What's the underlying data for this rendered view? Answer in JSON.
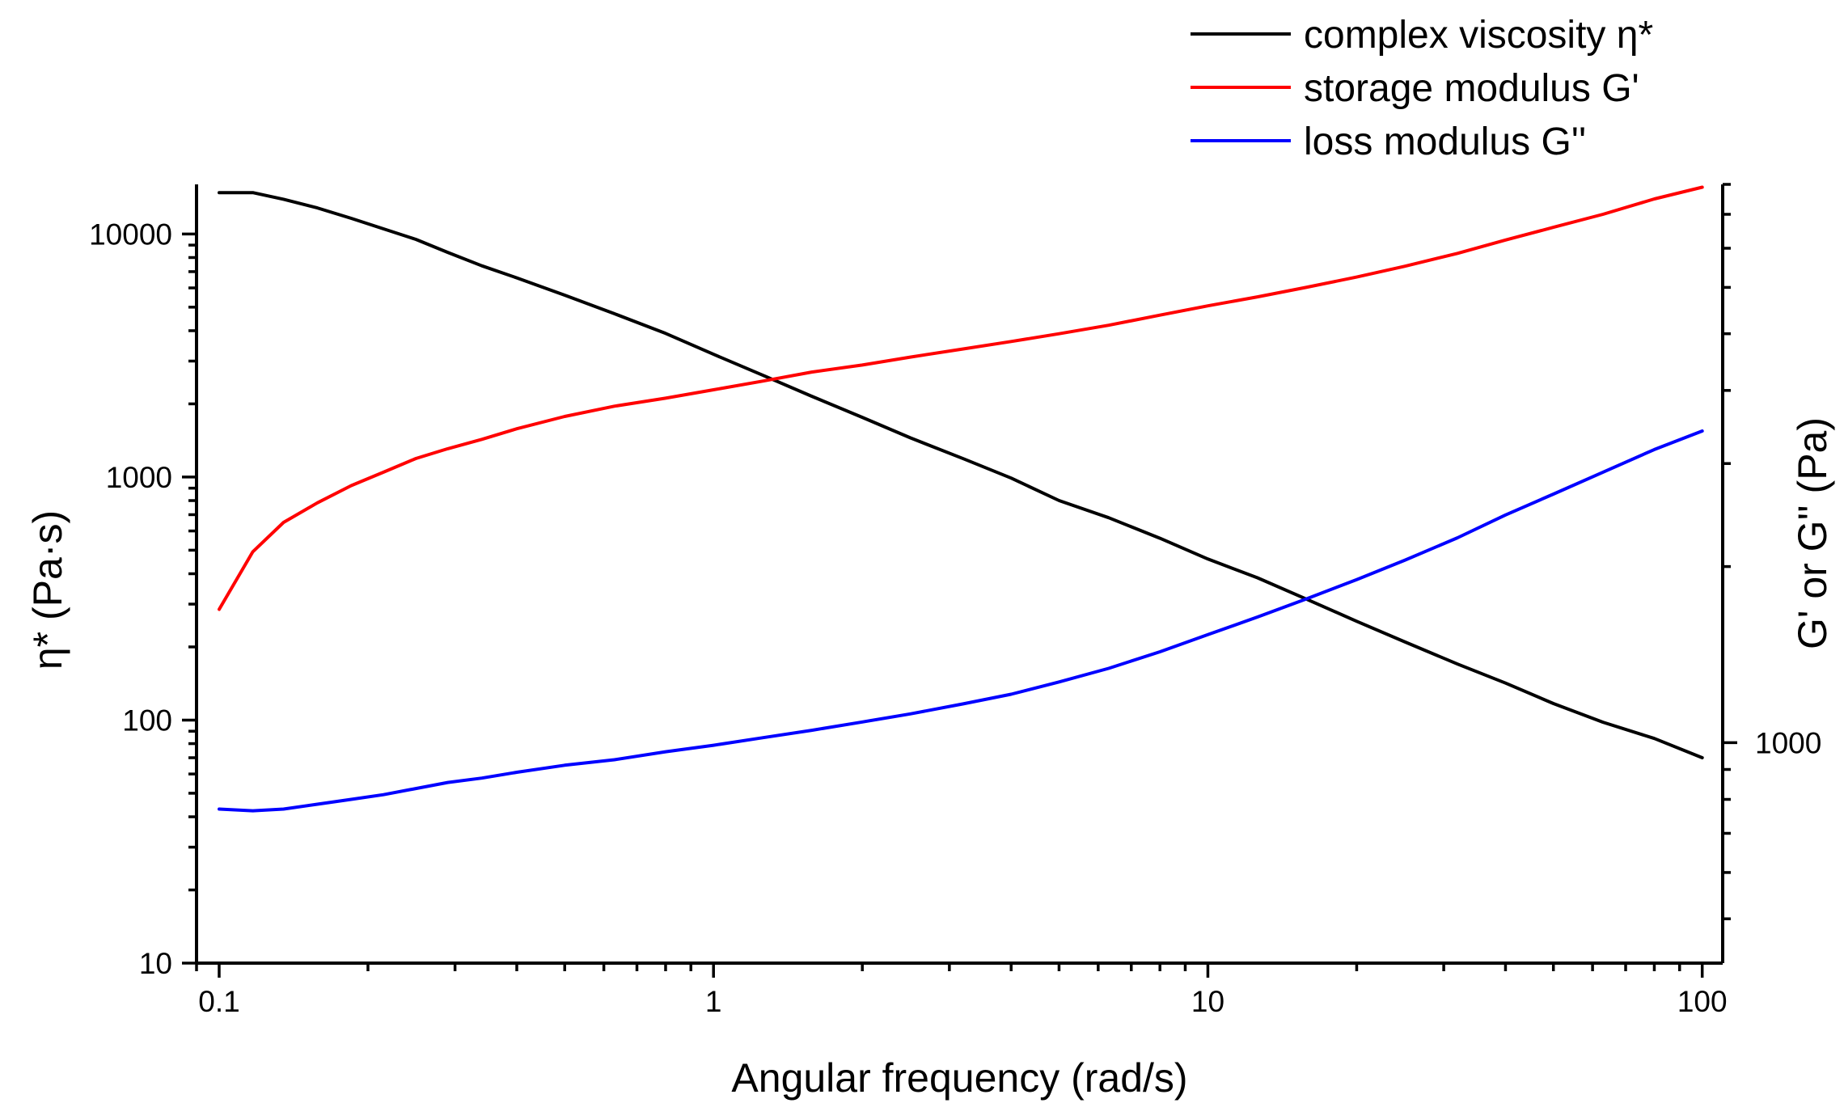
{
  "chart_data": {
    "type": "line",
    "title": "",
    "xlabel": "Angular frequency (rad/s)",
    "ylabel_left": "η* (Pa·s)",
    "ylabel_right": "G' or G'' (Pa)",
    "x_scale": "log",
    "y_left_scale": "log",
    "y_right_scale": "log",
    "xlim": [
      0.09,
      110
    ],
    "ylim_left": [
      10,
      16000
    ],
    "ylim_right": [
      420,
      9000
    ],
    "grid": false,
    "legend_position": "top-right",
    "x_ticks": [
      {
        "value": 0.1,
        "label": "0.1"
      },
      {
        "value": 1,
        "label": "1"
      },
      {
        "value": 10,
        "label": "10"
      },
      {
        "value": 100,
        "label": "100"
      }
    ],
    "y_left_ticks": [
      {
        "value": 10,
        "label": "10"
      },
      {
        "value": 100,
        "label": "100"
      },
      {
        "value": 1000,
        "label": "1000"
      },
      {
        "value": 10000,
        "label": "10000"
      }
    ],
    "y_right_ticks": [
      {
        "value": 1000,
        "label": "1000"
      }
    ],
    "series": [
      {
        "name": "complex viscosity η*",
        "color": "#000000",
        "axis": "left",
        "x": [
          0.1,
          0.117,
          0.135,
          0.158,
          0.185,
          0.215,
          0.25,
          0.29,
          0.34,
          0.4,
          0.5,
          0.63,
          0.8,
          1,
          1.26,
          1.58,
          2,
          2.5,
          3.2,
          4,
          5,
          6.3,
          8,
          10,
          12.6,
          15.8,
          20,
          25,
          32,
          40,
          50,
          63,
          80,
          100
        ],
        "values": [
          14800,
          14800,
          13900,
          12800,
          11600,
          10500,
          9500,
          8400,
          7400,
          6600,
          5600,
          4700,
          3900,
          3200,
          2620,
          2150,
          1760,
          1450,
          1190,
          990,
          800,
          680,
          560,
          460,
          385,
          315,
          255,
          210,
          170,
          142,
          117,
          98,
          84,
          70
        ]
      },
      {
        "name": "storage modulus G'",
        "color": "#ff0000",
        "axis": "right",
        "x": [
          0.1,
          0.117,
          0.135,
          0.158,
          0.185,
          0.215,
          0.25,
          0.29,
          0.34,
          0.4,
          0.5,
          0.63,
          0.8,
          1,
          1.26,
          1.58,
          2,
          2.5,
          3.2,
          4,
          5,
          6.3,
          8,
          10,
          12.6,
          15.8,
          20,
          25,
          32,
          40,
          50,
          63,
          80,
          100
        ],
        "values": [
          1690,
          2120,
          2380,
          2570,
          2750,
          2900,
          3060,
          3180,
          3300,
          3440,
          3610,
          3760,
          3880,
          4010,
          4150,
          4300,
          4420,
          4560,
          4710,
          4850,
          5000,
          5170,
          5380,
          5580,
          5780,
          6000,
          6250,
          6520,
          6860,
          7230,
          7600,
          8000,
          8500,
          8900
        ]
      },
      {
        "name": "loss modulus G''",
        "color": "#0000ff",
        "axis": "right",
        "x": [
          0.1,
          0.117,
          0.135,
          0.158,
          0.185,
          0.215,
          0.25,
          0.29,
          0.34,
          0.4,
          0.5,
          0.63,
          0.8,
          1,
          1.26,
          1.58,
          2,
          2.5,
          3.2,
          4,
          5,
          6.3,
          8,
          10,
          12.6,
          15.8,
          20,
          25,
          32,
          40,
          50,
          63,
          80,
          100
        ],
        "values": [
          770,
          765,
          770,
          785,
          800,
          815,
          835,
          855,
          870,
          890,
          915,
          935,
          965,
          990,
          1020,
          1050,
          1085,
          1120,
          1165,
          1210,
          1270,
          1340,
          1430,
          1530,
          1640,
          1760,
          1900,
          2050,
          2240,
          2450,
          2660,
          2900,
          3170,
          3410
        ]
      }
    ]
  }
}
